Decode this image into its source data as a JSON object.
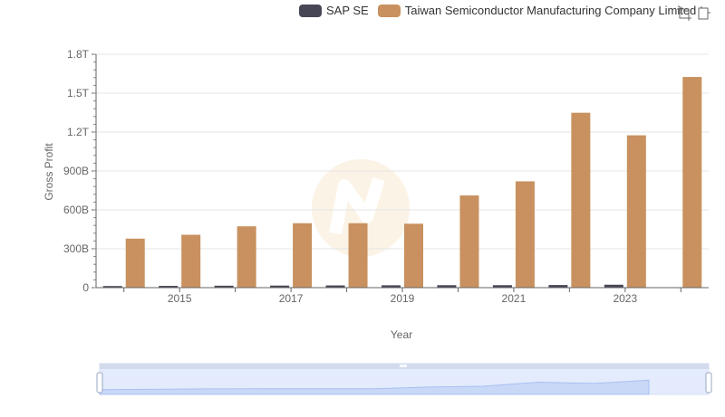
{
  "legend": {
    "items": [
      {
        "label": "SAP SE",
        "color": "#464655"
      },
      {
        "label": "Taiwan Semiconductor Manufacturing Company Limited",
        "color": "#c8915f"
      }
    ]
  },
  "toolbox": {
    "icons": [
      "zoom-icon",
      "restore-icon"
    ]
  },
  "chart_data": {
    "type": "bar",
    "xlabel": "Year",
    "ylabel": "Gross Profit",
    "ylim": [
      0,
      1800000000000
    ],
    "yticks": [
      {
        "value": 0,
        "label": "0"
      },
      {
        "value": 300000000000,
        "label": "300B"
      },
      {
        "value": 600000000000,
        "label": "600B"
      },
      {
        "value": 900000000000,
        "label": "900B"
      },
      {
        "value": 1200000000000,
        "label": "1.2T"
      },
      {
        "value": 1500000000000,
        "label": "1.5T"
      },
      {
        "value": 1800000000000,
        "label": "1.8T"
      }
    ],
    "categories": [
      "2014",
      "2015",
      "2016",
      "2017",
      "2018",
      "2019",
      "2020",
      "2021",
      "2022",
      "2023",
      "2024"
    ],
    "xtick_labels": [
      "",
      "2015",
      "",
      "2017",
      "",
      "2019",
      "",
      "2021",
      "",
      "2023",
      ""
    ],
    "series": [
      {
        "name": "SAP SE",
        "color": "#464655",
        "values": [
          12400000000,
          13700000000,
          15000000000,
          15900000000,
          17100000000,
          18100000000,
          18900000000,
          19000000000,
          20200000000,
          22500000000,
          null
        ]
      },
      {
        "name": "Taiwan Semiconductor Manufacturing Company Limited",
        "color": "#c8915f",
        "values": [
          378000000000,
          408000000000,
          473000000000,
          497000000000,
          497000000000,
          493000000000,
          711000000000,
          820000000000,
          1349000000000,
          1175000000000,
          1625000000000
        ]
      }
    ],
    "grid": true,
    "legend_position": "top-right",
    "datazoom": true
  }
}
